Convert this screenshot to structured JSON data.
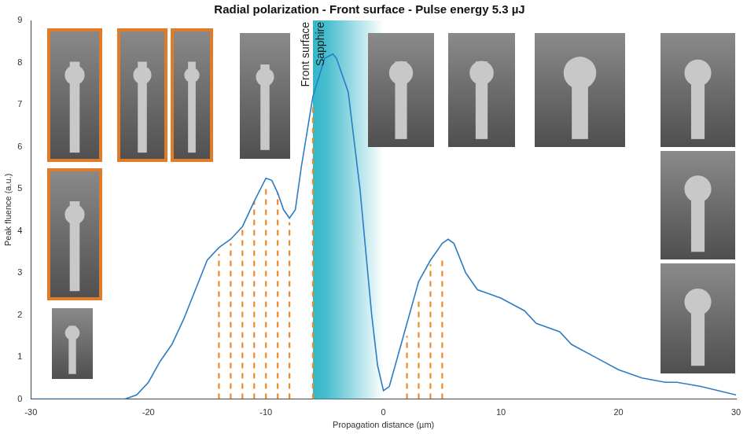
{
  "chart_data": {
    "type": "line",
    "title": "Radial polarization - Front surface - Pulse energy 5.3 µJ",
    "x_label": "Propagation distance (µm)",
    "y_label": "Peak fluence (a.u.)",
    "x": [
      -30,
      -22,
      -21,
      -20,
      -19,
      -18,
      -17,
      -16,
      -15,
      -14,
      -13,
      -12,
      -11,
      -10,
      -9.5,
      -9,
      -8.5,
      -8,
      -7.5,
      -7,
      -6,
      -5,
      -4.3,
      -4,
      -3,
      -2,
      -1,
      -0.5,
      0,
      0.5,
      1,
      2,
      3,
      4,
      5,
      5.5,
      6,
      7,
      8,
      9,
      10,
      12,
      13,
      15,
      16,
      18,
      20,
      22,
      24,
      25,
      27,
      30
    ],
    "values": [
      0,
      0,
      0.1,
      0.4,
      0.9,
      1.3,
      1.9,
      2.6,
      3.3,
      3.6,
      3.8,
      4.1,
      4.7,
      5.25,
      5.2,
      4.9,
      4.5,
      4.3,
      4.5,
      5.5,
      7.2,
      8.1,
      8.2,
      8.1,
      7.3,
      5.0,
      2.0,
      0.8,
      0.2,
      0.3,
      0.8,
      1.8,
      2.8,
      3.3,
      3.7,
      3.8,
      3.7,
      3.0,
      2.6,
      2.5,
      2.4,
      2.1,
      1.8,
      1.6,
      1.3,
      1.0,
      0.7,
      0.5,
      0.4,
      0.4,
      0.3,
      0.1
    ],
    "color": "#2e7cc4",
    "xlim": [
      -30,
      30
    ],
    "xticks": [
      -30,
      -20,
      -10,
      0,
      10,
      20,
      30
    ],
    "ylim": [
      0,
      9
    ],
    "yticks": [
      0,
      1,
      2,
      3,
      4,
      5,
      6,
      7,
      8,
      9
    ],
    "grid": false,
    "shaded_region": {
      "x_range": [
        -6,
        0
      ],
      "color": "#29b3c6",
      "labels": [
        "Front surface",
        "Sapphire"
      ]
    },
    "dashed_lines": {
      "color": "#f0892a",
      "line_style": "dashed",
      "x": [
        -14,
        -13,
        -12,
        -11,
        -10,
        -9,
        -8,
        -6,
        2,
        3,
        4,
        5
      ],
      "heights": [
        3.45,
        3.7,
        4.1,
        4.7,
        5.0,
        4.9,
        4.2,
        7.0,
        1.5,
        2.4,
        3.2,
        3.3
      ]
    }
  }
}
